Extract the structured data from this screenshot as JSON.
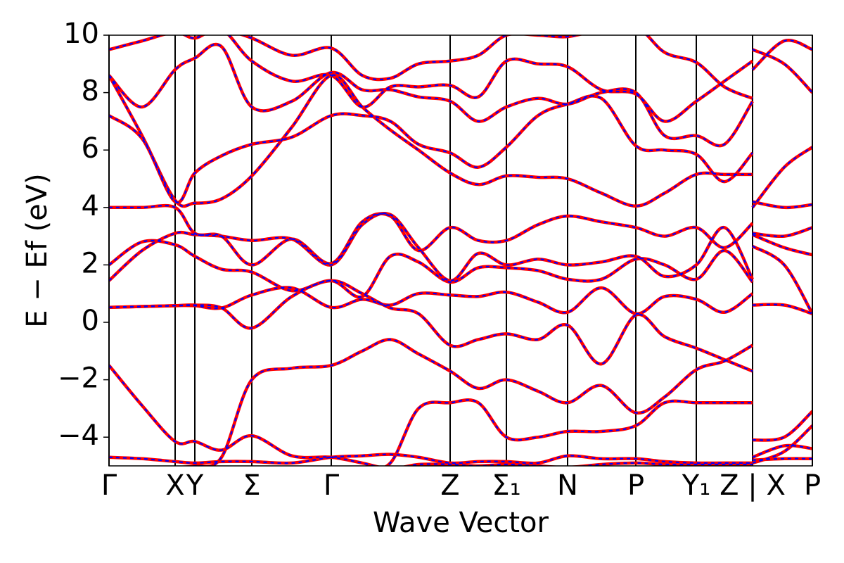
{
  "chart_data": {
    "type": "line",
    "xlabel": "Wave Vector",
    "ylabel": "E − Ef (eV)",
    "xlim": [
      0,
      1000
    ],
    "ylim": [
      -5,
      10
    ],
    "yticks": [
      {
        "value": -4,
        "label": "−4"
      },
      {
        "value": -2,
        "label": "−2"
      },
      0,
      2,
      4,
      6,
      8,
      10
    ],
    "xticks": [
      {
        "value": 0,
        "label": "Γ"
      },
      {
        "value": 94,
        "label": "X"
      },
      {
        "value": 122,
        "label": "Y"
      },
      {
        "value": 203,
        "label": "Σ"
      },
      {
        "value": 316,
        "label": "Γ"
      },
      {
        "value": 485,
        "label": "Z"
      },
      {
        "value": 565,
        "label": "Σ₁"
      },
      {
        "value": 652,
        "label": "N"
      },
      {
        "value": 749,
        "label": "P"
      },
      {
        "value": 835,
        "label": "Y₁"
      },
      {
        "value": 915,
        "label": "Z | X"
      },
      {
        "value": 1000,
        "label": "P"
      }
    ],
    "x": [
      0,
      47,
      94,
      122,
      160,
      203,
      260,
      316,
      360,
      400,
      440,
      485,
      525,
      565,
      610,
      652,
      700,
      749,
      790,
      835,
      875,
      915,
      915,
      915,
      960,
      1000
    ],
    "bands": [
      [
        -4.7,
        -4.75,
        -4.85,
        -4.9,
        -4.85,
        -4.85,
        -4.9,
        -4.7,
        -4.65,
        -4.6,
        -4.7,
        -4.9,
        -4.85,
        -4.85,
        -4.9,
        -4.65,
        -4.75,
        -4.75,
        -4.85,
        -4.9,
        -4.9,
        -4.9,
        null,
        -4.8,
        -4.75,
        -4.75
      ],
      [
        -1.5,
        -2.9,
        -4.15,
        -4.15,
        -4.45,
        -3.95,
        -4.65,
        -4.7,
        -4.9,
        -5.1,
        -4.95,
        -4.95,
        -5.0,
        -4.95,
        -5.0,
        -5.05,
        -4.95,
        -4.9,
        -4.95,
        -4.95,
        -4.95,
        -4.95,
        null,
        -4.9,
        -4.5,
        -3.6
      ],
      [
        -5.1,
        -5.1,
        -5.05,
        -5.0,
        -4.7,
        -2.0,
        -1.6,
        -1.5,
        -1.0,
        -0.6,
        -1.1,
        -1.7,
        -2.3,
        -2.0,
        -2.4,
        -2.8,
        -2.2,
        -3.15,
        -2.6,
        -1.65,
        -1.35,
        -0.8,
        null,
        -4.1,
        -4.0,
        -3.1
      ],
      [
        -5.1,
        -5.1,
        -5.1,
        -5.1,
        -5.1,
        -5.1,
        -5.1,
        -5.1,
        -5.1,
        -4.9,
        -3.0,
        -2.8,
        -2.8,
        -4.0,
        -4.0,
        -3.8,
        -3.8,
        -3.6,
        -2.8,
        -2.8,
        -2.8,
        -2.8,
        null,
        -4.7,
        -4.3,
        -4.4
      ],
      [
        0.52,
        0.55,
        0.58,
        0.6,
        0.5,
        -0.2,
        0.9,
        1.45,
        1.0,
        0.5,
        0.3,
        -0.8,
        -0.6,
        -0.4,
        -0.6,
        -0.1,
        -1.45,
        0.25,
        -0.5,
        -0.9,
        -1.3,
        -1.7,
        null,
        0.6,
        0.6,
        0.3
      ],
      [
        1.45,
        2.5,
        3.1,
        3.05,
        3.0,
        2.85,
        2.9,
        2.0,
        3.4,
        3.75,
        2.6,
        1.45,
        2.4,
        2.0,
        2.2,
        2.0,
        2.1,
        2.3,
        1.6,
        2.0,
        3.3,
        1.5,
        null,
        3.1,
        3.0,
        3.3
      ],
      [
        0.52,
        0.55,
        0.58,
        0.58,
        0.5,
        0.95,
        1.2,
        0.52,
        0.8,
        0.6,
        1.0,
        0.95,
        0.9,
        1.05,
        0.7,
        0.35,
        1.2,
        0.3,
        0.9,
        0.8,
        0.35,
        1.0,
        null,
        2.65,
        2.0,
        0.3
      ],
      [
        2.0,
        2.8,
        2.7,
        2.3,
        1.85,
        1.75,
        1.1,
        1.45,
        0.9,
        2.3,
        2.1,
        1.4,
        1.9,
        1.9,
        1.8,
        1.5,
        1.5,
        2.2,
        2.0,
        1.5,
        2.5,
        1.4,
        null,
        3.05,
        2.6,
        2.35
      ],
      [
        4.0,
        4.0,
        4.0,
        3.1,
        3.0,
        2.0,
        2.9,
        2.05,
        3.5,
        3.7,
        2.5,
        3.3,
        2.85,
        2.85,
        3.4,
        3.7,
        3.5,
        3.3,
        3.0,
        3.3,
        2.6,
        3.45,
        null,
        4.2,
        4.0,
        4.1
      ],
      [
        8.6,
        6.5,
        4.25,
        4.15,
        4.3,
        5.1,
        6.8,
        8.6,
        7.5,
        6.7,
        6.0,
        5.2,
        4.8,
        5.1,
        5.05,
        5.0,
        4.5,
        4.05,
        4.5,
        5.15,
        5.15,
        5.15,
        null,
        4.0,
        5.4,
        6.1
      ],
      [
        7.2,
        6.4,
        4.2,
        5.2,
        5.8,
        6.2,
        6.45,
        7.2,
        7.2,
        7.0,
        6.2,
        5.9,
        5.4,
        6.1,
        7.2,
        7.6,
        7.8,
        6.15,
        6.0,
        5.85,
        4.9,
        5.9,
        null,
        9.5,
        9.0,
        8.0
      ],
      [
        8.6,
        7.5,
        8.8,
        9.2,
        9.6,
        7.5,
        7.7,
        8.7,
        8.1,
        8.1,
        7.85,
        7.7,
        7.0,
        7.5,
        7.8,
        7.6,
        8.0,
        8.0,
        6.5,
        6.5,
        6.2,
        7.7,
        null,
        8.8,
        9.8,
        9.5
      ],
      [
        9.5,
        9.8,
        10.1,
        9.9,
        10.2,
        9.1,
        8.4,
        8.6,
        7.5,
        8.2,
        8.2,
        8.25,
        7.85,
        9.1,
        9.0,
        8.9,
        8.1,
        7.95,
        7.0,
        7.7,
        8.4,
        9.1,
        null,
        10.2,
        10.2,
        10.2
      ],
      [
        10.2,
        10.2,
        10.2,
        10.2,
        10.2,
        9.9,
        9.3,
        9.55,
        8.6,
        8.5,
        9.0,
        9.1,
        9.3,
        10.0,
        10.0,
        9.95,
        10.2,
        10.3,
        9.4,
        9.05,
        8.2,
        7.8,
        null,
        10.2,
        10.2,
        10.2
      ]
    ],
    "lines": [
      {
        "color": "#ff0000",
        "dashed": false
      },
      {
        "color": "#0000ff",
        "dashed": true
      }
    ]
  }
}
